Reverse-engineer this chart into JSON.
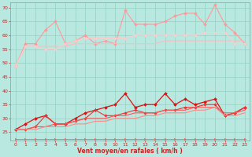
{
  "xlabel": "Vent moyen/en rafales ( km/h )",
  "bg_color": "#b8e8e0",
  "grid_color": "#88ccbb",
  "xlim": [
    -0.5,
    23.5
  ],
  "ylim": [
    22,
    72
  ],
  "yticks": [
    25,
    30,
    35,
    40,
    45,
    50,
    55,
    60,
    65,
    70
  ],
  "xticks": [
    0,
    1,
    2,
    3,
    4,
    5,
    6,
    7,
    8,
    9,
    10,
    11,
    12,
    13,
    14,
    15,
    16,
    17,
    18,
    19,
    20,
    21,
    22,
    23
  ],
  "x": [
    0,
    1,
    2,
    3,
    4,
    5,
    6,
    7,
    8,
    9,
    10,
    11,
    12,
    13,
    14,
    15,
    16,
    17,
    18,
    19,
    20,
    21,
    22,
    23
  ],
  "lines_upper": [
    {
      "y": [
        49,
        57,
        57,
        62,
        65,
        57,
        58,
        60,
        57,
        58,
        57,
        69,
        64,
        64,
        64,
        65,
        67,
        68,
        68,
        64,
        71,
        64,
        61,
        57
      ],
      "color": "#ff9999",
      "lw": 0.8,
      "marker": "D",
      "ms": 2.0
    },
    {
      "y": [
        49,
        56,
        56,
        56,
        56,
        56,
        57,
        57,
        57,
        57,
        57,
        57,
        57,
        57,
        57,
        58,
        58,
        58,
        58,
        58,
        58,
        58,
        58,
        58
      ],
      "color": "#ffbbbb",
      "lw": 0.8,
      "marker": null,
      "ms": 0
    },
    {
      "y": [
        49,
        56,
        56,
        55,
        55,
        57,
        58,
        59,
        59,
        59,
        59,
        59,
        60,
        60,
        60,
        60,
        60,
        60,
        60,
        61,
        61,
        61,
        57,
        57
      ],
      "color": "#ffcccc",
      "lw": 0.8,
      "marker": "D",
      "ms": 1.8
    }
  ],
  "lines_lower": [
    {
      "y": [
        26,
        28,
        30,
        31,
        28,
        28,
        30,
        32,
        33,
        34,
        35,
        39,
        34,
        35,
        35,
        39,
        35,
        37,
        35,
        36,
        37,
        31,
        32,
        34
      ],
      "color": "#dd1111",
      "lw": 0.9,
      "marker": "D",
      "ms": 2.0
    },
    {
      "y": [
        26,
        26,
        27,
        31,
        28,
        28,
        29,
        30,
        33,
        31,
        31,
        32,
        33,
        32,
        32,
        33,
        33,
        34,
        34,
        35,
        35,
        31,
        32,
        34
      ],
      "color": "#ee3333",
      "lw": 0.8,
      "marker": "D",
      "ms": 1.8
    },
    {
      "y": [
        26,
        26,
        27,
        27,
        28,
        28,
        29,
        30,
        30,
        30,
        31,
        31,
        32,
        32,
        32,
        33,
        33,
        33,
        34,
        34,
        34,
        32,
        32,
        33
      ],
      "color": "#ff5555",
      "lw": 0.8,
      "marker": null,
      "ms": 0
    },
    {
      "y": [
        26,
        26,
        26,
        27,
        27,
        27,
        28,
        28,
        29,
        29,
        30,
        30,
        30,
        31,
        31,
        32,
        32,
        32,
        33,
        33,
        34,
        31,
        31,
        32
      ],
      "color": "#ff8888",
      "lw": 0.8,
      "marker": null,
      "ms": 0
    }
  ],
  "line_flat": {
    "y": [
      22.5,
      22.5,
      22.5,
      22.5,
      22.5,
      22.5,
      22.5,
      22.5,
      22.5,
      22.5,
      22.5,
      22.5,
      22.5,
      22.5,
      22.5,
      22.5,
      22.5,
      22.5,
      22.5,
      22.5,
      22.5,
      22.5,
      22.5,
      22.5
    ],
    "color": "#ee6666",
    "lw": 0.6
  },
  "tick_color": "#cc2222",
  "tick_fontsize": 4.5,
  "xlabel_fontsize": 5.5,
  "xlabel_color": "#cc2222"
}
